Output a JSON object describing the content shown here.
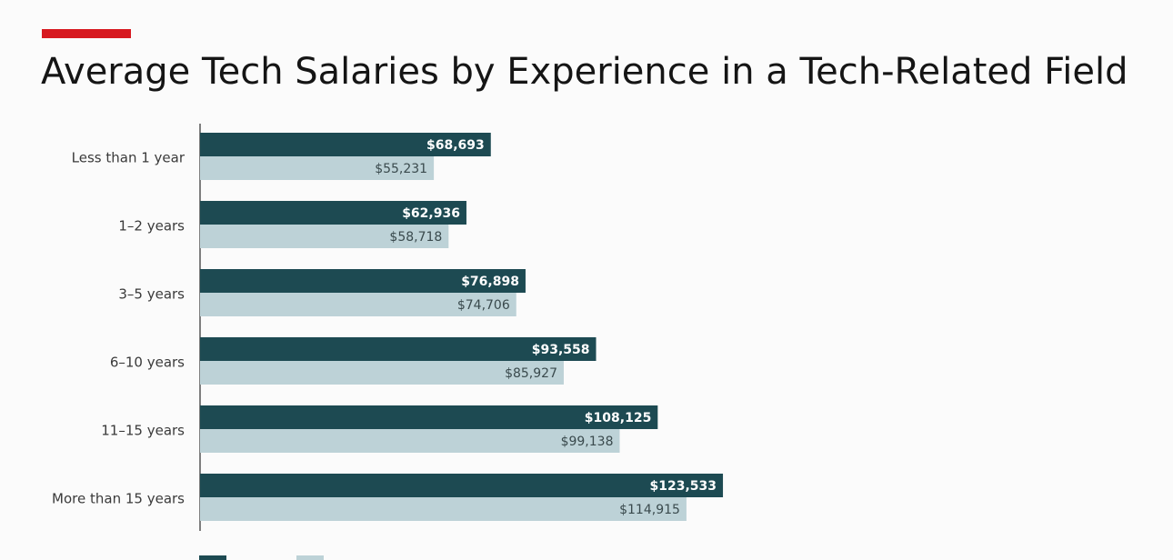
{
  "title": "Average Tech Salaries by Experience in a Tech-Related Field",
  "colors": {
    "accent": "#d71920",
    "series_dark": "#1d4a52",
    "series_light": "#bdd2d7",
    "label_on_dark": "#ffffff",
    "label_on_light": "#3a4a4d",
    "axis": "#555555"
  },
  "chart_data": {
    "type": "bar",
    "orientation": "horizontal",
    "title": "Average Tech Salaries by Experience in a Tech-Related Field",
    "categories": [
      "Less than 1 year",
      "1–2 years",
      "3–5 years",
      "6–10 years",
      "11–15 years",
      "More than 15 years"
    ],
    "series": [
      {
        "values": [
          68693,
          62936,
          76898,
          93558,
          108125,
          123533
        ],
        "labels": [
          "$68,693",
          "$62,936",
          "$76,898",
          "$93,558",
          "$108,125",
          "$123,533"
        ],
        "color": "#1d4a52"
      },
      {
        "values": [
          55231,
          58718,
          74706,
          85927,
          99138,
          114915
        ],
        "labels": [
          "$55,231",
          "$58,718",
          "$74,706",
          "$85,927",
          "$99,138",
          "$114,915"
        ],
        "color": "#bdd2d7"
      }
    ],
    "xlim": [
      0,
      250000
    ],
    "grid": false,
    "legend": "bottom-left"
  }
}
